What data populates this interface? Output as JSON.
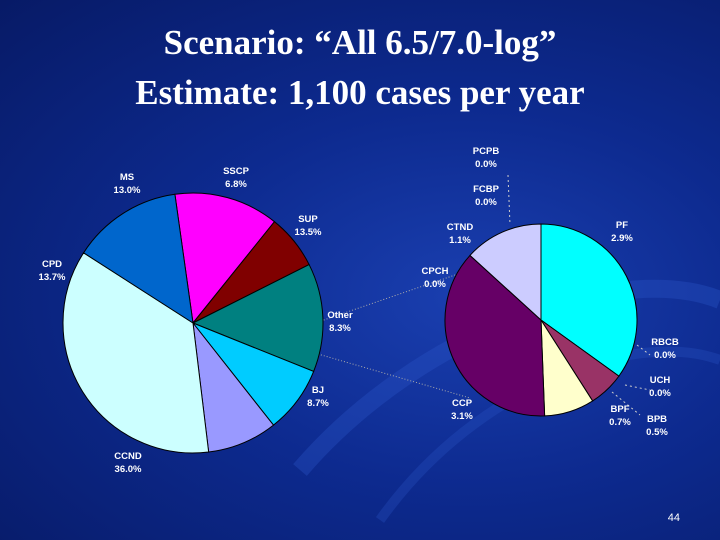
{
  "slide": {
    "title_line1": "Scenario: “All 6.5/7.0-log”",
    "title_line2": "Estimate: 1,100 cases per year",
    "page_number": "44"
  },
  "chart_data": [
    {
      "type": "pie",
      "slices": [
        {
          "label": "MS",
          "value": 13.0,
          "display": "13.0%",
          "color": "#ff00ff"
        },
        {
          "label": "SSCP",
          "value": 6.8,
          "display": "6.8%",
          "color": "#800000"
        },
        {
          "label": "SUP",
          "value": 13.5,
          "display": "13.5%",
          "color": "#008080"
        },
        {
          "label": "Other",
          "value": 8.3,
          "display": "8.3%",
          "color": "#00ccff"
        },
        {
          "label": "BJ",
          "value": 8.7,
          "display": "8.7%",
          "color": "#9999ff"
        },
        {
          "label": "CCND",
          "value": 36.0,
          "display": "36.0%",
          "color": "#ccffff"
        },
        {
          "label": "CPD",
          "value": 13.7,
          "display": "13.7%",
          "color": "#0066cc"
        }
      ]
    },
    {
      "type": "pie",
      "slices": [
        {
          "label": "PF",
          "value": 2.9,
          "display": "2.9%",
          "color": "#00ffff"
        },
        {
          "label": "RBCB",
          "value": 0.0,
          "display": "0.0%",
          "color": "#993366"
        },
        {
          "label": "UCH",
          "value": 0.0,
          "display": "0.0%",
          "color": "#ffffff"
        },
        {
          "label": "BPB",
          "value": 0.5,
          "display": "0.5%",
          "color": "#993366"
        },
        {
          "label": "BPF",
          "value": 0.7,
          "display": "0.7%",
          "color": "#ffffcc"
        },
        {
          "label": "CCP",
          "value": 3.1,
          "display": "3.1%",
          "color": "#660066"
        },
        {
          "label": "CPCH",
          "value": 0.0,
          "display": "0.0%",
          "color": "#ccccff"
        },
        {
          "label": "CTND",
          "value": 1.1,
          "display": "1.1%",
          "color": "#ccccff"
        },
        {
          "label": "FCBP",
          "value": 0.0,
          "display": "0.0%",
          "color": "#ffffff"
        },
        {
          "label": "PCPB",
          "value": 0.0,
          "display": "0.0%",
          "color": "#ffffff"
        }
      ]
    }
  ]
}
